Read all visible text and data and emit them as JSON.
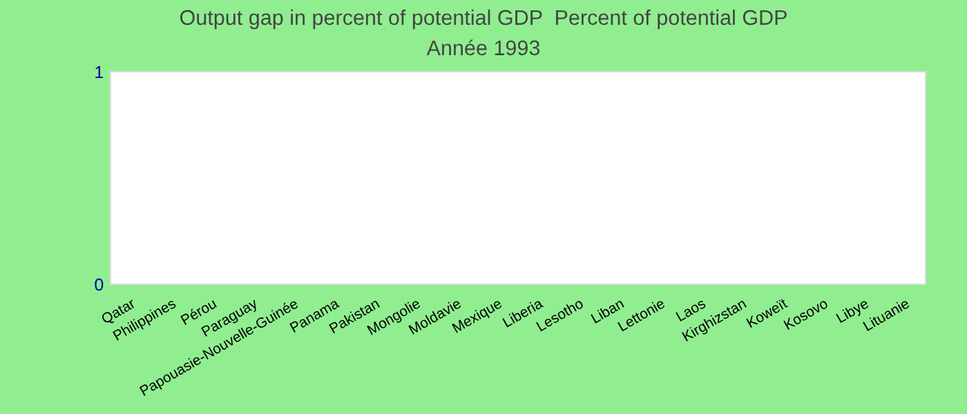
{
  "chart_data": {
    "type": "bar",
    "title": "Output gap in percent of potential GDP  Percent of potential GDP",
    "subtitle": "Année 1993",
    "categories": [
      "Qatar",
      "Philippines",
      "Pérou",
      "Paraguay",
      "Papouasie-Nouvelle-Guinée",
      "Panama",
      "Pakistan",
      "Mongolie",
      "Moldavie",
      "Mexique",
      "Liberia",
      "Lesotho",
      "Liban",
      "Lettonie",
      "Laos",
      "Kirghizstan",
      "Koweït",
      "Kosovo",
      "Libye",
      "Lituanie"
    ],
    "values": [
      null,
      null,
      null,
      null,
      null,
      null,
      null,
      null,
      null,
      null,
      null,
      null,
      null,
      null,
      null,
      null,
      null,
      null,
      null,
      null
    ],
    "ylim": [
      0,
      1
    ],
    "yticks": [
      0,
      1
    ]
  }
}
